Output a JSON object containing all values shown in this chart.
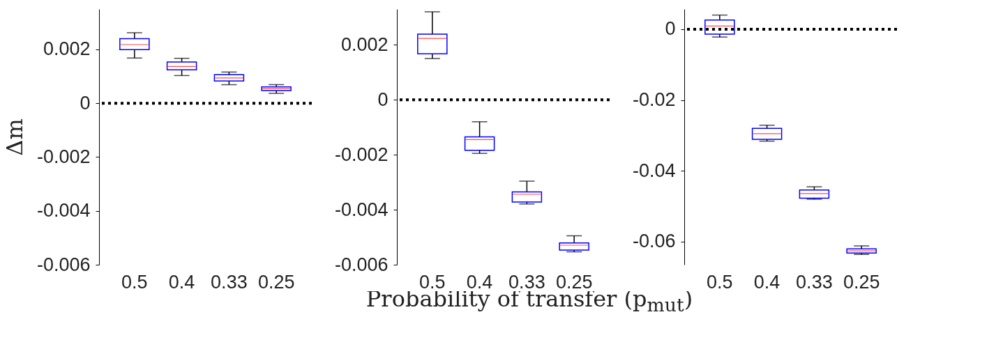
{
  "chart_data": [
    {
      "type": "box",
      "ylabel": "Δm",
      "categories": [
        "0.5",
        "0.4",
        "0.33",
        "0.25"
      ],
      "ylim": [
        -0.006,
        0.0035
      ],
      "yticks": [
        -0.006,
        -0.004,
        -0.002,
        0,
        0.002
      ],
      "series": [
        {
          "color": "#0000ff",
          "boxes": [
            {
              "low": 0.00168,
              "q1": 0.00199,
              "median": 0.00218,
              "q3": 0.0024,
              "high": 0.00262
            },
            {
              "low": 0.00103,
              "q1": 0.00124,
              "median": 0.00137,
              "q3": 0.00153,
              "high": 0.00167
            },
            {
              "low": 0.00069,
              "q1": 0.00083,
              "median": 0.00094,
              "q3": 0.00106,
              "high": 0.00116
            },
            {
              "low": 0.00037,
              "q1": 0.00047,
              "median": 0.00054,
              "q3": 0.00061,
              "high": 0.00069
            }
          ]
        }
      ],
      "ref_lines": [
        {
          "axis": "y",
          "value": 0,
          "color": "#000000",
          "line_style": "dotted"
        }
      ]
    },
    {
      "type": "box",
      "xlabel": "Probability of transfer (p$_{mut}$)",
      "categories": [
        "0.5",
        "0.4",
        "0.33",
        "0.25"
      ],
      "ylim": [
        -0.006,
        0.0033
      ],
      "yticks": [
        -0.006,
        -0.004,
        -0.002,
        0,
        0.002
      ],
      "series": [
        {
          "color": "#0000ff",
          "boxes": [
            {
              "low": 0.0015,
              "q1": 0.00167,
              "median": 0.00223,
              "q3": 0.00239,
              "high": 0.0032
            },
            {
              "low": -0.00195,
              "q1": -0.00184,
              "median": -0.00145,
              "q3": -0.00135,
              "high": -0.0008
            },
            {
              "low": -0.00379,
              "q1": -0.00372,
              "median": -0.00344,
              "q3": -0.00335,
              "high": -0.00296
            },
            {
              "low": -0.00553,
              "q1": -0.00547,
              "median": -0.00529,
              "q3": -0.00521,
              "high": -0.00495
            }
          ]
        }
      ],
      "ref_lines": [
        {
          "axis": "y",
          "value": 0,
          "color": "#000000",
          "line_style": "dotted"
        }
      ]
    },
    {
      "type": "box",
      "categories": [
        "0.5",
        "0.4",
        "0.33",
        "0.25"
      ],
      "ylim": [
        -0.0665,
        0.0057
      ],
      "yticks": [
        -0.06,
        -0.04,
        -0.02,
        0
      ],
      "series": [
        {
          "color": "#0000ff",
          "boxes": [
            {
              "low": -0.0022,
              "q1": -0.0014,
              "median": 0.0009,
              "q3": 0.0026,
              "high": 0.004
            },
            {
              "low": -0.0316,
              "q1": -0.0311,
              "median": -0.0295,
              "q3": -0.028,
              "high": -0.0271
            },
            {
              "low": -0.048,
              "q1": -0.0477,
              "median": -0.0464,
              "q3": -0.0454,
              "high": -0.0445
            },
            {
              "low": -0.0636,
              "q1": -0.0632,
              "median": -0.0626,
              "q3": -0.062,
              "high": -0.0612
            }
          ]
        }
      ],
      "ref_lines": [
        {
          "axis": "y",
          "value": 0,
          "color": "#000000",
          "line_style": "dotted"
        }
      ]
    }
  ]
}
